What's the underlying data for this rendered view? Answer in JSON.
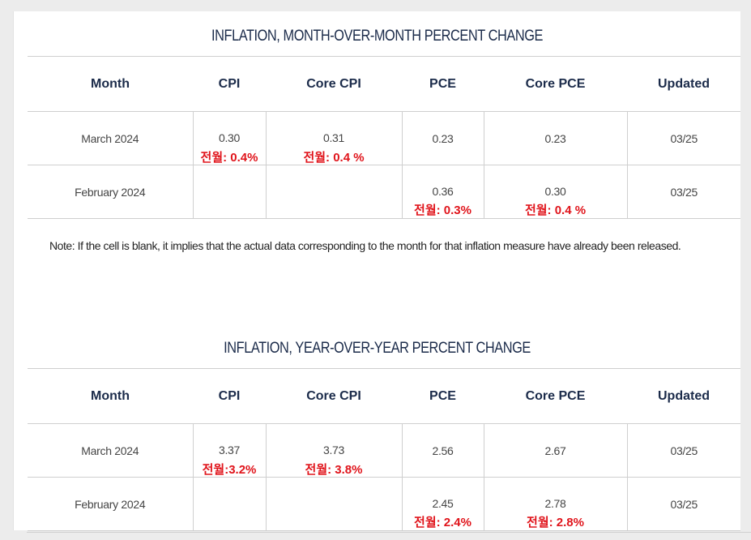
{
  "tables": [
    {
      "title": "INFLATION, MONTH-OVER-MONTH PERCENT CHANGE",
      "headers": [
        "Month",
        "CPI",
        "Core CPI",
        "PCE",
        "Core PCE",
        "Updated"
      ],
      "rows": [
        {
          "month": "March 2024",
          "cpi": "0.30",
          "cpi_note": "전월: 0.4%",
          "core_cpi": "0.31",
          "core_cpi_note": "전월: 0.4 %",
          "pce": "0.23",
          "pce_note": "",
          "core_pce": "0.23",
          "core_pce_note": "",
          "updated": "03/25"
        },
        {
          "month": "February 2024",
          "cpi": "",
          "cpi_note": "",
          "core_cpi": "",
          "core_cpi_note": "",
          "pce": "0.36",
          "pce_note": "전월: 0.3%",
          "core_pce": "0.30",
          "core_pce_note": "전월: 0.4 %",
          "updated": "03/25"
        }
      ],
      "footnote": "Note: If the cell is blank, it implies that the actual data corresponding to the month for that inflation measure have already been released."
    },
    {
      "title": "INFLATION, YEAR-OVER-YEAR PERCENT CHANGE",
      "headers": [
        "Month",
        "CPI",
        "Core CPI",
        "PCE",
        "Core PCE",
        "Updated"
      ],
      "rows": [
        {
          "month": "March 2024",
          "cpi": "3.37",
          "cpi_note": "전월:3.2%",
          "core_cpi": "3.73",
          "core_cpi_note": "전월: 3.8%",
          "pce": "2.56",
          "pce_note": "",
          "core_pce": "2.67",
          "core_pce_note": "",
          "updated": "03/25"
        },
        {
          "month": "February 2024",
          "cpi": "",
          "cpi_note": "",
          "core_cpi": "",
          "core_cpi_note": "",
          "pce": "2.45",
          "pce_note": "전월: 2.4%",
          "core_pce": "2.78",
          "core_pce_note": "전월: 2.8%",
          "updated": "03/25"
        }
      ]
    }
  ],
  "colors": {
    "title": "#1b2b4a",
    "header": "#1b2b4a",
    "note": "#e0141b",
    "border": "#cfcfcf"
  }
}
